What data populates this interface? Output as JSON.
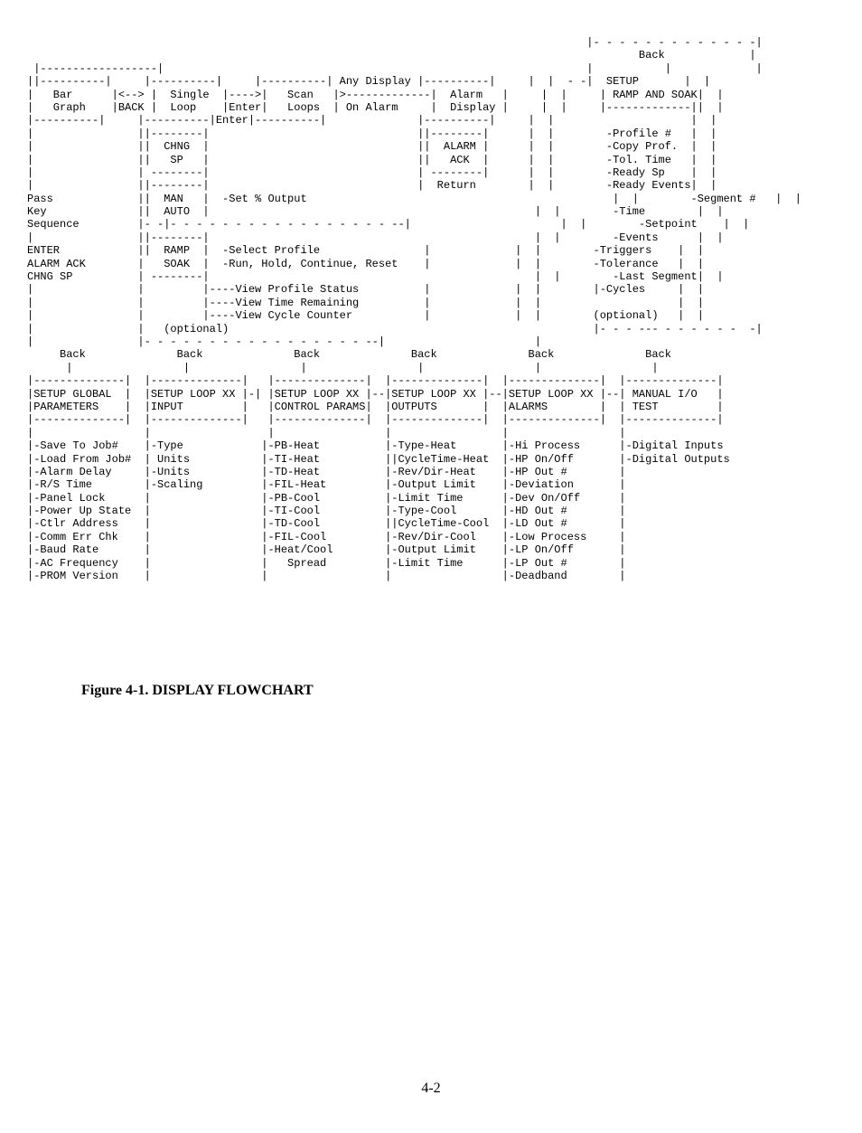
{
  "diagram": {
    "type": "flowchart",
    "font_family": "Courier New",
    "font_size_pt": 10,
    "text_color": "#000000",
    "background_color": "#ffffff",
    "top_right": {
      "back": "Back",
      "setup": "SETUP",
      "ramp_and_soak": "RAMP AND SOAK",
      "items": [
        "-Profile #",
        "-Copy Prof.",
        "-Tol. Time",
        "-Ready Sp",
        "-Ready Events",
        "-Segment #",
        "-Time",
        "-Setpoint",
        "-Events",
        "-Triggers",
        "-Tolerance",
        "-Last Segment",
        "-Cycles"
      ],
      "optional": "(optional)"
    },
    "row1": {
      "bar_graph": "Bar\nGraph",
      "arrow1": "<-->",
      "arrow1_sub": "BACK",
      "single_loop": "Single\nLoop",
      "arrow2": "---->",
      "arrow2_sub": "Enter\nEnter",
      "scan_loops": "Scan\nLoops",
      "any_display": "Any Display",
      "on_alarm": "On Alarm",
      "alarm_display": "Alarm\nDisplay"
    },
    "pass_key": "Pass\nKey\nSequence",
    "chng_sp": "CHNG\nSP",
    "man_auto": "MAN\nAUTO",
    "set_output": "-Set % Output",
    "alarm_ack": "ALARM\nACK",
    "return": "Return",
    "enter_block": "ENTER\nALARM ACK\nCHNG SP",
    "ramp_soak": "RAMP\nSOAK",
    "ramp_actions": "-Select Profile\n-Run, Hold, Continue, Reset",
    "view_items": [
      "----View Profile Status",
      "----View Time Remaining",
      "----View Cycle Counter"
    ],
    "optional_mid": "(optional)",
    "back_labels": [
      "Back",
      "Back",
      "Back",
      "Back",
      "Back",
      "Back"
    ],
    "setup_boxes": [
      {
        "title": "SETUP GLOBAL",
        "sub": "PARAMETERS"
      },
      {
        "title": "SETUP LOOP XX",
        "sub": "INPUT"
      },
      {
        "title": "SETUP LOOP XX",
        "sub": "CONTROL PARAMS"
      },
      {
        "title": "SETUP LOOP XX",
        "sub": "OUTPUTS"
      },
      {
        "title": "SETUP LOOP XX",
        "sub": "ALARMS"
      },
      {
        "title": "MANUAL I/O",
        "sub": "TEST"
      }
    ],
    "col_global": [
      "-Save To Job#",
      "-Load From Job#",
      "-Alarm Delay",
      "-R/S Time",
      "-Panel Lock",
      "-Power Up State",
      "-Ctlr Address",
      "-Comm Err Chk",
      "-Baud Rate",
      "-AC Frequency",
      "-PROM Version"
    ],
    "col_input": [
      "-Type",
      " Units",
      "-Units",
      "-Scaling"
    ],
    "col_control": [
      "-PB-Heat",
      "-TI-Heat",
      "-TD-Heat",
      "-FIL-Heat",
      "-PB-Cool",
      "-TI-Cool",
      "-TD-Cool",
      "-FIL-Cool",
      "-Heat/Cool",
      "   Spread"
    ],
    "col_outputs": [
      "-Type-Heat",
      "|CycleTime-Heat",
      "-Rev/Dir-Heat",
      "-Output Limit",
      "-Limit Time",
      "-Type-Cool",
      "|CycleTime-Cool",
      "-Rev/Dir-Cool",
      "-Output Limit",
      "-Limit Time"
    ],
    "col_alarms": [
      "-Hi Process",
      "-HP On/Off",
      "-HP Out #",
      "-Deviation",
      "-Dev On/Off",
      "-HD Out #",
      "-LD Out #",
      "-Low Process",
      "-LP On/Off",
      "-LP Out #",
      "-Deadband"
    ],
    "col_manual": [
      "-Digital Inputs",
      "-Digital Outputs"
    ]
  },
  "caption": "Figure 4-1. DISPLAY FLOWCHART",
  "page_number": "4-2"
}
